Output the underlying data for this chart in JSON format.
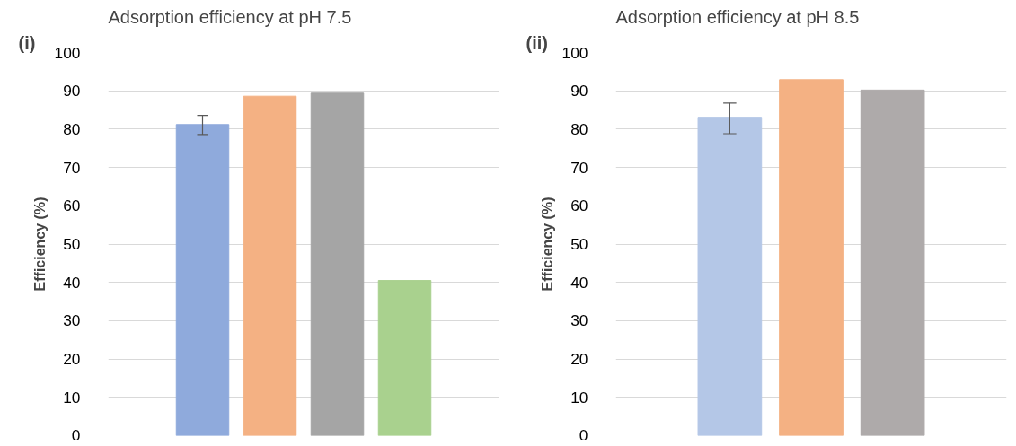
{
  "chart_data": [
    {
      "type": "bar",
      "title": "Adsorption efficiency at pH 7.5",
      "ylabel": "Efficiency (%)",
      "annotations": [
        "(i)"
      ],
      "categories": [
        null,
        null,
        null,
        null
      ],
      "values": [
        81.2,
        88.6,
        89.4,
        40.5
      ],
      "colors": [
        "#8faadc",
        "#f4b183",
        "#a5a5a5",
        "#a9d18e"
      ],
      "errors": [
        [
          78.6,
          83.6
        ],
        null,
        null,
        null
      ],
      "ylim": [
        0,
        100
      ],
      "yticks": [
        0,
        10,
        20,
        30,
        40,
        50,
        60,
        70,
        80,
        90,
        100
      ],
      "grid": "y"
    },
    {
      "type": "bar",
      "title": "Adsorption efficiency at pH 8.5",
      "ylabel": "Efficiency (%)",
      "annotations": [
        "(ii)"
      ],
      "categories": [
        null,
        null,
        null
      ],
      "values": [
        83.1,
        92.9,
        90.2
      ],
      "colors": [
        "#b4c7e7",
        "#f4b183",
        "#aeaaaa"
      ],
      "errors": [
        [
          78.8,
          86.8
        ],
        null,
        null
      ],
      "ylim": [
        0,
        100
      ],
      "yticks": [
        0,
        10,
        20,
        30,
        40,
        50,
        60,
        70,
        80,
        90,
        100
      ],
      "grid": "y"
    }
  ]
}
